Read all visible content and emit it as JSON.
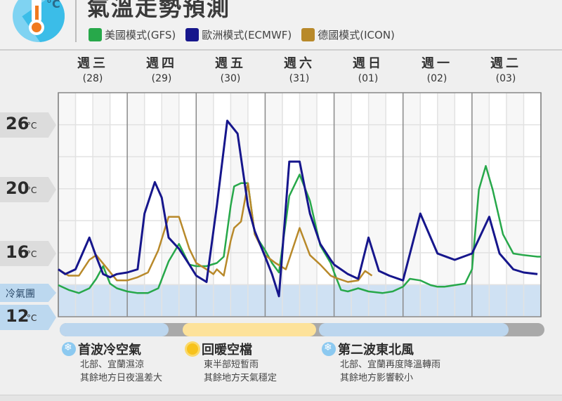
{
  "header": {
    "title": "氣溫走勢預測",
    "icon": "thermometer-celsius-icon",
    "legend": [
      {
        "label": "美國模式(GFS)",
        "color": "#27a84a"
      },
      {
        "label": "歐洲模式(ECMWF)",
        "color": "#16168c"
      },
      {
        "label": "德國模式(ICON)",
        "color": "#b8892a"
      }
    ]
  },
  "days": [
    {
      "name": "週三",
      "date": "(28)"
    },
    {
      "name": "週四",
      "date": "(29)"
    },
    {
      "name": "週五",
      "date": "(30)"
    },
    {
      "name": "週六",
      "date": "(31)"
    },
    {
      "name": "週日",
      "date": "(01)"
    },
    {
      "name": "週一",
      "date": "(02)"
    },
    {
      "name": "週二",
      "date": "(03)"
    }
  ],
  "yaxis": {
    "labels": [
      {
        "value": "26",
        "unit": "°C"
      },
      {
        "value": "20",
        "unit": "°C"
      },
      {
        "value": "16",
        "unit": "°C"
      },
      {
        "value": "12",
        "unit": "°C"
      }
    ],
    "cold_zone_label": "冷氣團"
  },
  "periods": [
    {
      "title": "首波冷空氣",
      "icon": "snowflake-icon",
      "lines": [
        "北部、宜蘭濕涼",
        "其餘地方日夜溫差大"
      ],
      "bar_color": "#bcd6ee"
    },
    {
      "title": "回暖空檔",
      "icon": "sun-icon",
      "lines": [
        "東半部短暫雨",
        "其餘地方天氣穩定"
      ],
      "bar_color": "#fde29a"
    },
    {
      "title": "第二波東北風",
      "icon": "snowflake-icon",
      "lines": [
        "北部、宜蘭再度降溫轉雨",
        "其餘地方影響較小"
      ],
      "bar_color": "#bcd6ee"
    }
  ],
  "chart_data": {
    "type": "line",
    "title": "氣溫走勢預測",
    "xlabel": "",
    "ylabel": "°C",
    "ylim": [
      12,
      28
    ],
    "y_ticks": [
      26,
      20,
      16,
      12
    ],
    "x_categories": [
      "週三(28)",
      "週四(29)",
      "週五(30)",
      "週六(31)",
      "週日(01)",
      "週一(02)",
      "週二(03)"
    ],
    "x_unit": "day index (0-7)",
    "cold_zone": {
      "label": "冷氣團",
      "below": 14
    },
    "grid": true,
    "legend_position": "top",
    "series": [
      {
        "name": "美國模式(GFS)",
        "color": "#27a84a",
        "x": [
          0,
          0.15,
          0.3,
          0.45,
          0.55,
          0.65,
          0.75,
          0.85,
          1.0,
          1.15,
          1.3,
          1.45,
          1.6,
          1.75,
          1.9,
          2.0,
          2.15,
          2.3,
          2.4,
          2.5,
          2.55,
          2.65,
          2.75,
          2.85,
          3.0,
          3.1,
          3.2,
          3.35,
          3.5,
          3.65,
          3.8,
          3.95,
          4.0,
          4.1,
          4.2,
          4.35,
          4.5,
          4.7,
          4.85,
          5.0,
          5.1,
          5.25,
          5.4,
          5.5,
          5.6,
          5.75,
          5.9,
          6.0,
          6.1,
          6.2,
          6.3,
          6.45,
          6.6,
          6.75,
          6.95,
          7.0
        ],
        "values": [
          14,
          13.7,
          13.5,
          13.8,
          14.4,
          15.2,
          14.1,
          13.8,
          13.6,
          13.5,
          13.5,
          13.8,
          15.5,
          16.6,
          15.3,
          15.2,
          15.2,
          15.4,
          15.8,
          19,
          20.3,
          20.6,
          20.6,
          17.2,
          16.2,
          15.4,
          14.8,
          19.6,
          21.4,
          19.3,
          16.5,
          15.4,
          14.8,
          13.7,
          13.6,
          13.8,
          13.6,
          13.5,
          13.6,
          13.9,
          14.4,
          14.3,
          14.0,
          13.9,
          13.9,
          14.0,
          14.1,
          15,
          20,
          22.2,
          20.0,
          17.2,
          16.0,
          15.9,
          15.8,
          15.8
        ],
        "note": "x values are fractional day positions"
      },
      {
        "name": "歐洲模式(ECMWF)",
        "color": "#16168c",
        "x": [
          0,
          0.1,
          0.25,
          0.4,
          0.45,
          0.55,
          0.65,
          0.75,
          0.85,
          1.0,
          1.15,
          1.25,
          1.4,
          1.5,
          1.6,
          1.75,
          1.9,
          2.0,
          2.15,
          2.3,
          2.45,
          2.6,
          2.75,
          2.85,
          3.0,
          3.1,
          3.2,
          3.35,
          3.5,
          3.65,
          3.8,
          3.95,
          4.0,
          4.2,
          4.35,
          4.5,
          4.65,
          4.8,
          5.0,
          5.25,
          5.5,
          5.75,
          6.0,
          6.25,
          6.4,
          6.6,
          6.75,
          6.95
        ],
        "values": [
          15,
          14.7,
          15,
          16.5,
          17,
          15.8,
          14.7,
          14.5,
          14.7,
          14.8,
          15,
          18.5,
          20.7,
          19.5,
          17,
          16.3,
          15.3,
          14.6,
          14.2,
          19,
          26.4,
          25.2,
          19,
          17.4,
          15.8,
          14.7,
          13.3,
          22.6,
          22.6,
          18.5,
          16.6,
          15.6,
          15.3,
          14.7,
          14.4,
          17.0,
          14.9,
          14.6,
          14.3,
          18.5,
          16.0,
          15.6,
          16.0,
          18.3,
          16.0,
          15.0,
          14.8,
          14.7
        ]
      },
      {
        "name": "德國模式(ICON)",
        "color": "#b8892a",
        "x": [
          0,
          0.15,
          0.3,
          0.45,
          0.55,
          0.7,
          0.85,
          1.0,
          1.15,
          1.3,
          1.45,
          1.6,
          1.75,
          1.9,
          2.0,
          2.15,
          2.25,
          2.3,
          2.4,
          2.5,
          2.55,
          2.65,
          2.75,
          2.85,
          3.0,
          3.15,
          3.3,
          3.5,
          3.65,
          3.8,
          3.95,
          4.0,
          4.2,
          4.35,
          4.45,
          4.55
        ],
        "values": [
          15,
          14.6,
          14.6,
          15.6,
          15.9,
          15.1,
          14.3,
          14.3,
          14.5,
          14.8,
          16.2,
          18.3,
          18.3,
          16.3,
          15.4,
          15,
          14.7,
          15,
          14.6,
          16.8,
          17.6,
          18.0,
          20.6,
          17.2,
          15.9,
          15.4,
          15.0,
          17.6,
          15.9,
          15.3,
          14.6,
          14.5,
          14.2,
          14.3,
          14.9,
          14.6
        ]
      }
    ]
  }
}
